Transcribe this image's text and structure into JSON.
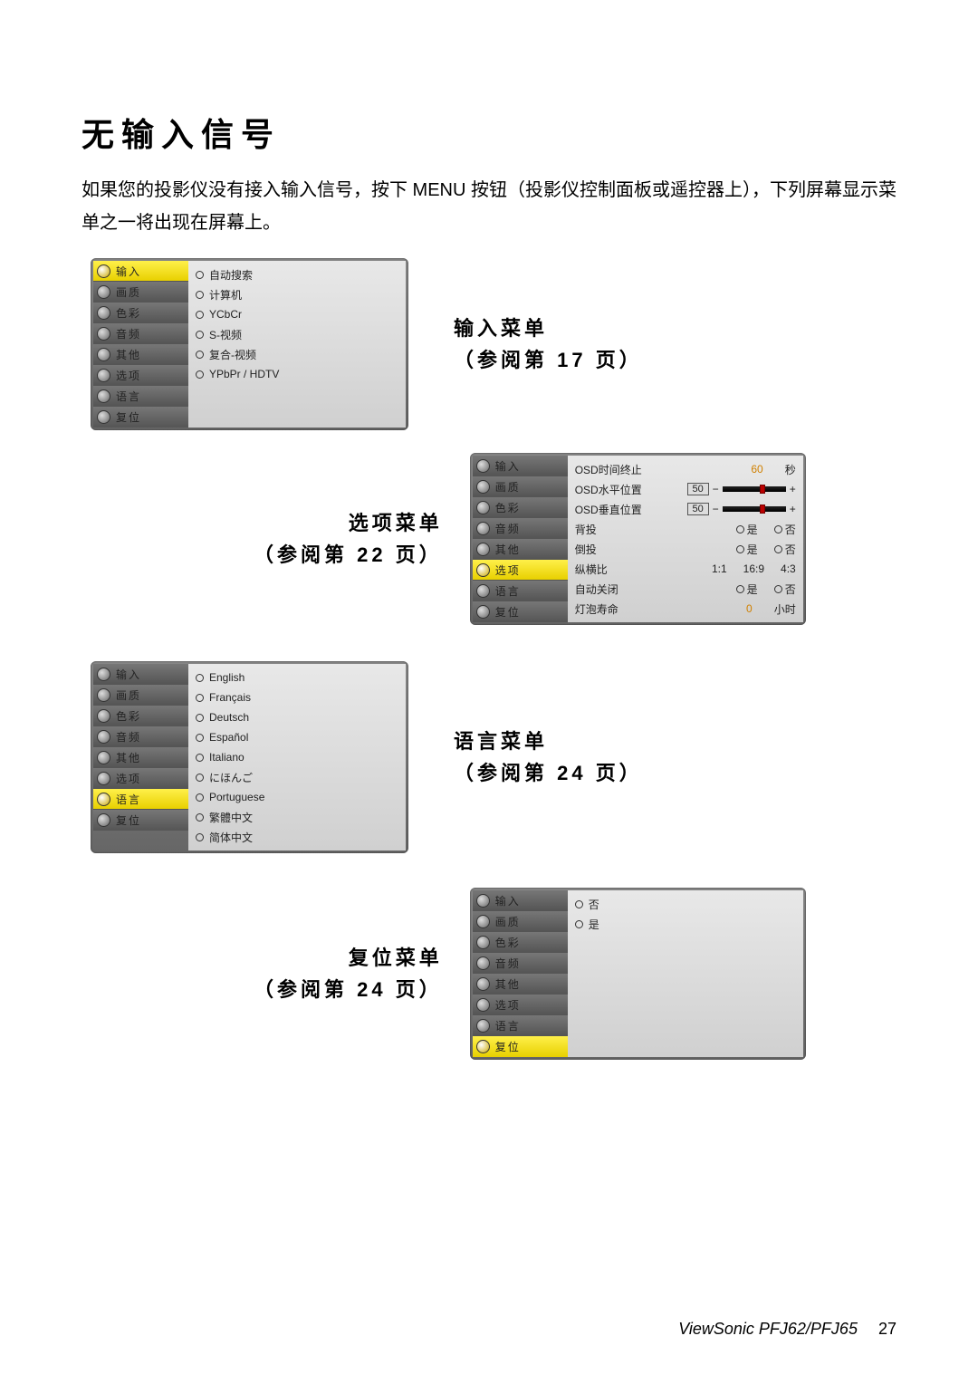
{
  "page_title": "无输入信号",
  "intro": "如果您的投影仪没有接入输入信号，按下 MENU 按钮（投影仪控制面板或遥控器上），下列屏幕显示菜单之一将出现在屏幕上。",
  "sidebar_tabs": [
    "输入",
    "画质",
    "色彩",
    "音频",
    "其他",
    "选项",
    "语言",
    "复位"
  ],
  "input_menu": {
    "title": "输入菜单",
    "ref": "（参阅第  17  页）",
    "active_tab_index": 0,
    "options": [
      "自动搜索",
      "计算机",
      "YCbCr",
      "S-视频",
      "复合-视频",
      "YPbPr / HDTV"
    ]
  },
  "options_menu": {
    "title": "选项菜单",
    "ref": "（参阅第  22  页）",
    "active_tab_index": 5,
    "rows": {
      "osd_timeout": {
        "label": "OSD时间终止",
        "value": "60",
        "unit": "秒",
        "value_color": "#d08000"
      },
      "osd_h": {
        "label": "OSD水平位置",
        "value": "50",
        "slider_pos": 0.65
      },
      "osd_v": {
        "label": "OSD垂直位置",
        "value": "50",
        "slider_pos": 0.65
      },
      "back_proj": {
        "label": "背投",
        "yes": "是",
        "no": "否"
      },
      "ceiling": {
        "label": "倒投",
        "yes": "是",
        "no": "否"
      },
      "aspect": {
        "label": "纵横比",
        "a": "1:1",
        "b": "16:9",
        "c": "4:3"
      },
      "auto_off": {
        "label": "自动关闭",
        "yes": "是",
        "no": "否"
      },
      "lamp": {
        "label": "灯泡寿命",
        "value": "0",
        "unit": "小时",
        "value_color": "#d08000"
      }
    }
  },
  "language_menu": {
    "title": "语言菜单",
    "ref": "（参阅第  24  页）",
    "active_tab_index": 6,
    "options": [
      "English",
      "Français",
      "Deutsch",
      "Español",
      "Italiano",
      "にほんご",
      "Portuguese",
      "繁體中文",
      "简体中文"
    ]
  },
  "reset_menu": {
    "title": "复位菜单",
    "ref": "（参阅第  24  页）",
    "active_tab_index": 7,
    "options": [
      "否",
      "是"
    ]
  },
  "footer": {
    "model": "ViewSonic PFJ62/PFJ65",
    "page": "27"
  }
}
